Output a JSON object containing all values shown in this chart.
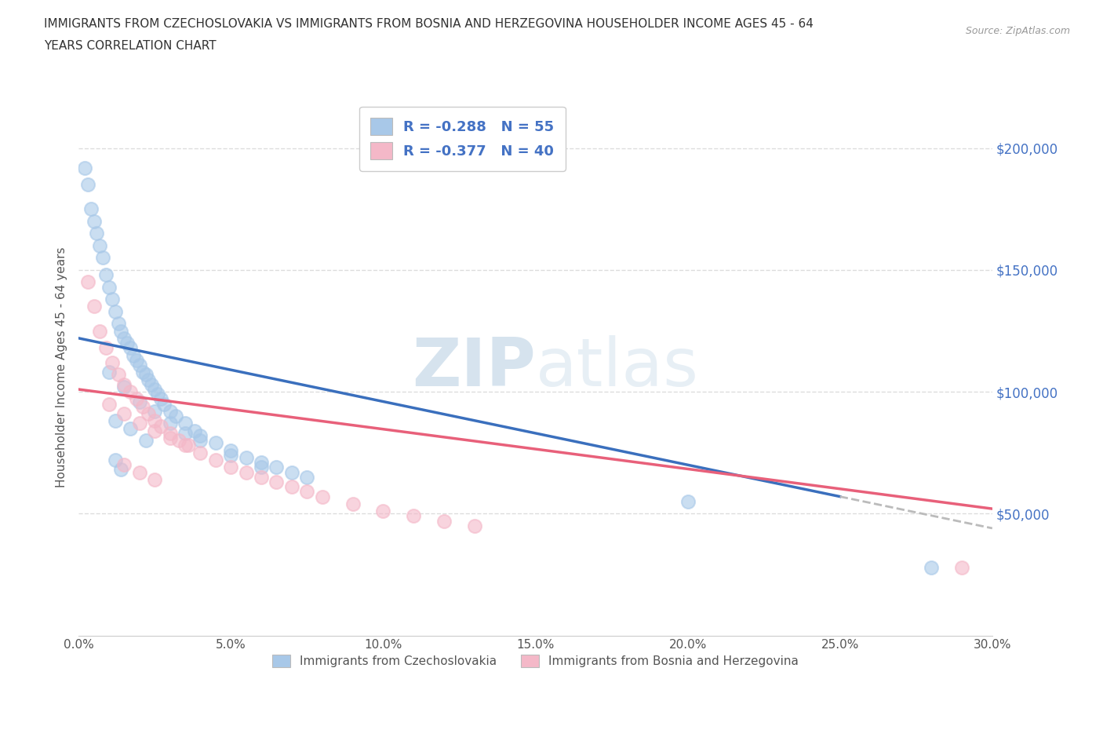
{
  "title_line1": "IMMIGRANTS FROM CZECHOSLOVAKIA VS IMMIGRANTS FROM BOSNIA AND HERZEGOVINA HOUSEHOLDER INCOME AGES 45 - 64",
  "title_line2": "YEARS CORRELATION CHART",
  "source_text": "Source: ZipAtlas.com",
  "ylabel": "Householder Income Ages 45 - 64 years",
  "xlim": [
    0.0,
    0.3
  ],
  "ylim": [
    0,
    220000
  ],
  "xtick_labels": [
    "0.0%",
    "5.0%",
    "10.0%",
    "15.0%",
    "20.0%",
    "25.0%",
    "30.0%"
  ],
  "xtick_values": [
    0.0,
    0.05,
    0.1,
    0.15,
    0.2,
    0.25,
    0.3
  ],
  "ytick_labels": [
    "$50,000",
    "$100,000",
    "$150,000",
    "$200,000"
  ],
  "ytick_values": [
    50000,
    100000,
    150000,
    200000
  ],
  "watermark_zip": "ZIP",
  "watermark_atlas": "atlas",
  "legend_r1": "R = -0.288   N = 55",
  "legend_r2": "R = -0.377   N = 40",
  "color_czech": "#a8c8e8",
  "color_bosnia": "#f4b8c8",
  "trend_color_czech": "#3a6fbd",
  "trend_color_bosnia": "#e8607a",
  "trend_dash_color": "#bbbbbb",
  "czech_scatter_x": [
    0.002,
    0.003,
    0.004,
    0.005,
    0.006,
    0.007,
    0.008,
    0.009,
    0.01,
    0.011,
    0.012,
    0.013,
    0.014,
    0.015,
    0.016,
    0.017,
    0.018,
    0.019,
    0.02,
    0.021,
    0.022,
    0.023,
    0.024,
    0.025,
    0.026,
    0.027,
    0.028,
    0.03,
    0.032,
    0.035,
    0.038,
    0.04,
    0.045,
    0.05,
    0.055,
    0.06,
    0.065,
    0.07,
    0.075,
    0.01,
    0.015,
    0.02,
    0.025,
    0.03,
    0.035,
    0.04,
    0.05,
    0.06,
    0.012,
    0.017,
    0.022,
    0.012,
    0.014,
    0.2,
    0.28
  ],
  "czech_scatter_y": [
    192000,
    185000,
    175000,
    170000,
    165000,
    160000,
    155000,
    148000,
    143000,
    138000,
    133000,
    128000,
    125000,
    122000,
    120000,
    118000,
    115000,
    113000,
    111000,
    108000,
    107000,
    105000,
    103000,
    101000,
    99000,
    97000,
    95000,
    92000,
    90000,
    87000,
    84000,
    82000,
    79000,
    76000,
    73000,
    71000,
    69000,
    67000,
    65000,
    108000,
    102000,
    96000,
    92000,
    87000,
    83000,
    80000,
    74000,
    69000,
    88000,
    85000,
    80000,
    72000,
    68000,
    55000,
    28000
  ],
  "bosnia_scatter_x": [
    0.003,
    0.005,
    0.007,
    0.009,
    0.011,
    0.013,
    0.015,
    0.017,
    0.019,
    0.021,
    0.023,
    0.025,
    0.027,
    0.03,
    0.033,
    0.036,
    0.04,
    0.045,
    0.05,
    0.055,
    0.06,
    0.065,
    0.07,
    0.075,
    0.08,
    0.09,
    0.1,
    0.11,
    0.12,
    0.13,
    0.01,
    0.015,
    0.02,
    0.025,
    0.03,
    0.035,
    0.015,
    0.02,
    0.025,
    0.29
  ],
  "bosnia_scatter_y": [
    145000,
    135000,
    125000,
    118000,
    112000,
    107000,
    103000,
    100000,
    97000,
    94000,
    91000,
    88000,
    86000,
    83000,
    80000,
    78000,
    75000,
    72000,
    69000,
    67000,
    65000,
    63000,
    61000,
    59000,
    57000,
    54000,
    51000,
    49000,
    47000,
    45000,
    95000,
    91000,
    87000,
    84000,
    81000,
    78000,
    70000,
    67000,
    64000,
    28000
  ],
  "czech_trend_x0": 0.0,
  "czech_trend_y0": 122000,
  "czech_trend_x1": 0.25,
  "czech_trend_y1": 57000,
  "bosnia_trend_x0": 0.0,
  "bosnia_trend_y0": 101000,
  "bosnia_trend_x1": 0.3,
  "bosnia_trend_y1": 52000,
  "grid_color": "#dddddd",
  "background_color": "#ffffff"
}
